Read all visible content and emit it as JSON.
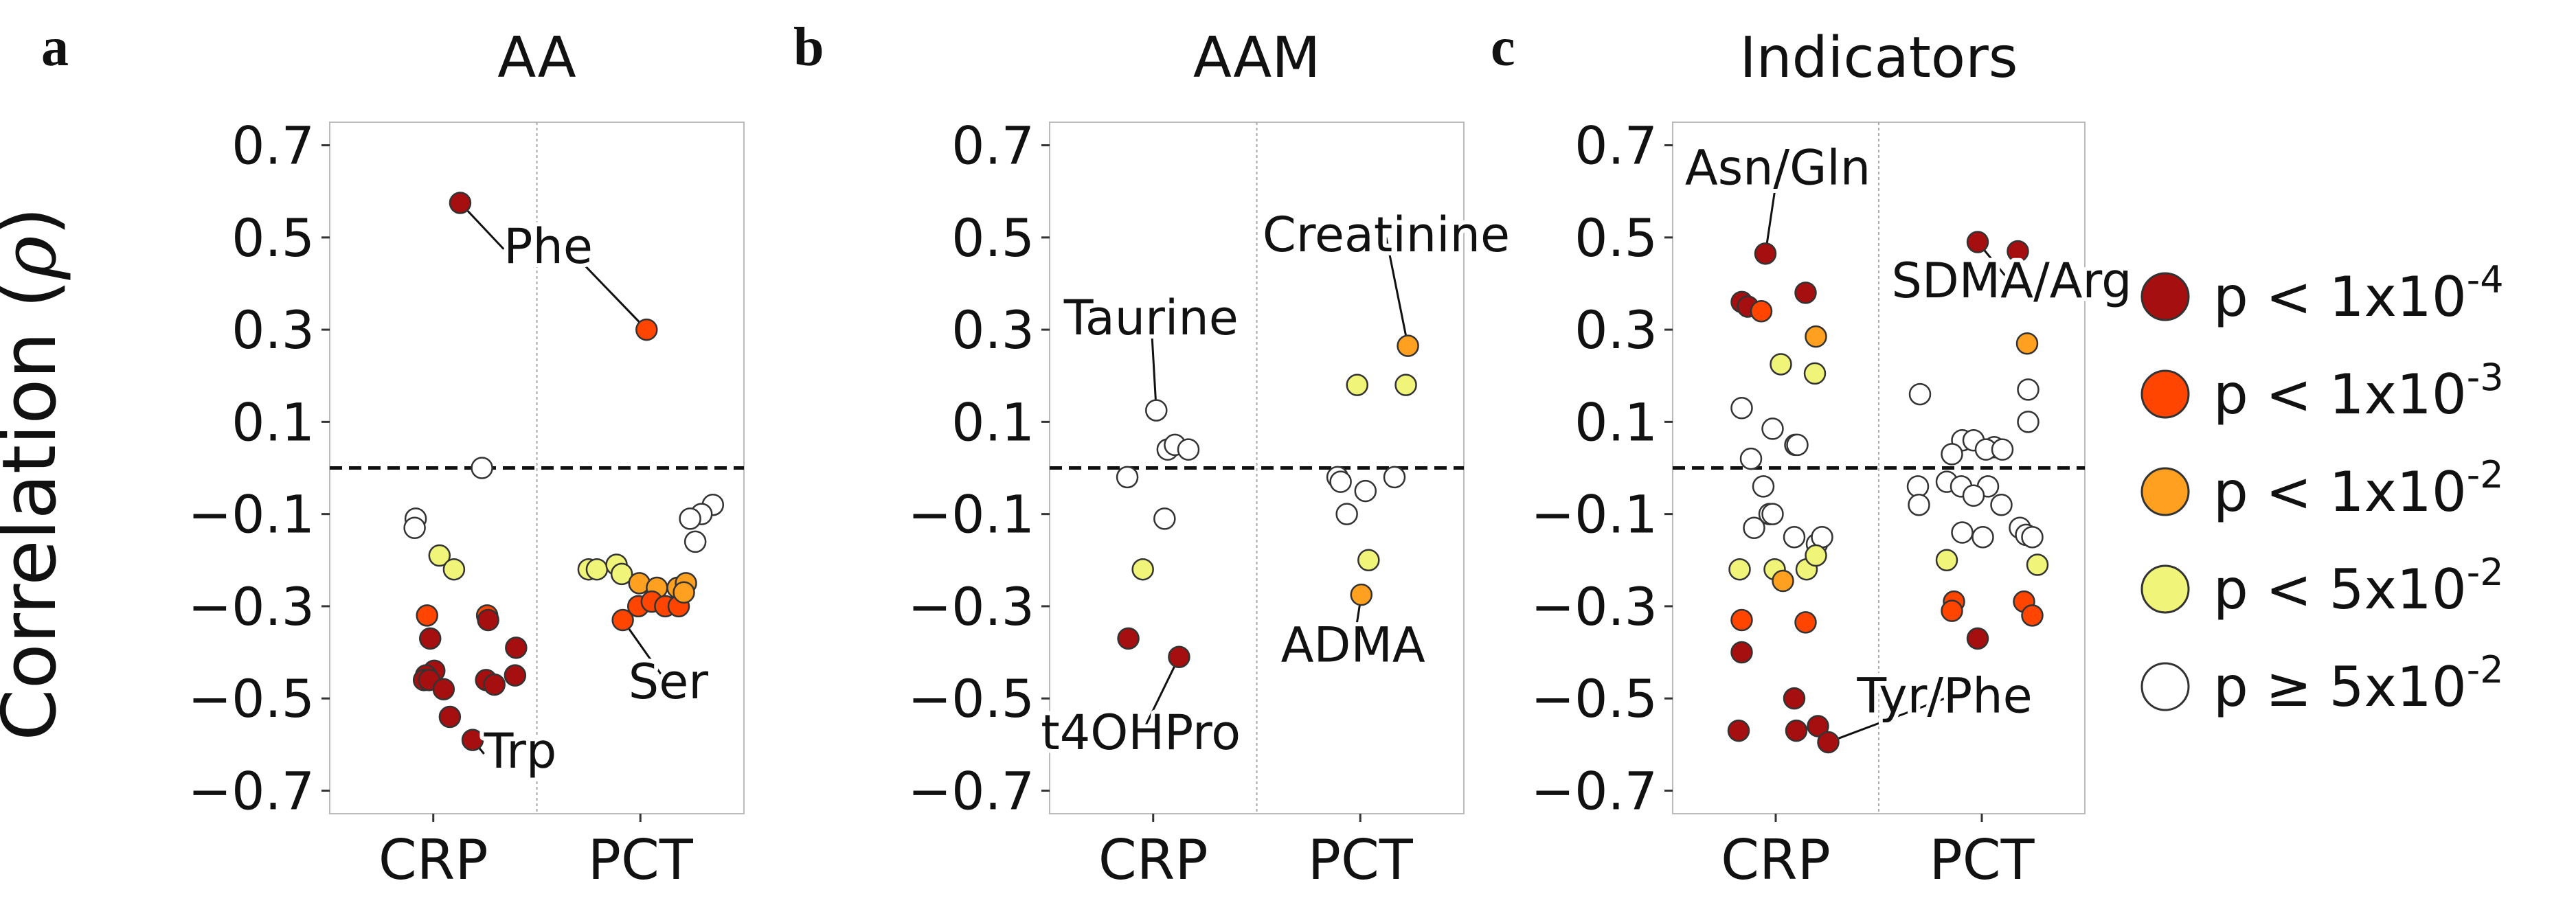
{
  "figure": {
    "ylabel": "Correlation (",
    "ylabel_symbol": "ρ",
    "ylabel_close": ")"
  },
  "legend": {
    "items": [
      {
        "label": "p < 1x10",
        "exp": "-4",
        "color": "#a50f0f"
      },
      {
        "label": "p < 1x10",
        "exp": "-3",
        "color": "#ff4500"
      },
      {
        "label": "p < 1x10",
        "exp": "-2",
        "color": "#ffa020"
      },
      {
        "label": "p < 5x10",
        "exp": "-2",
        "color": "#f0f57a"
      },
      {
        "label": "p ≥ 5x10",
        "exp": "-2",
        "color": "#ffffff"
      }
    ]
  },
  "chart_data": [
    {
      "type": "scatter",
      "panel": "a",
      "title": "AA",
      "categories": [
        "CRP",
        "PCT"
      ],
      "ylim": [
        -0.75,
        0.75
      ],
      "yticks": [
        0.7,
        0.5,
        0.3,
        0.1,
        -0.1,
        -0.3,
        -0.5,
        -0.7
      ],
      "ytick_labels": [
        "0.7",
        "0.5",
        "0.3",
        "0.1",
        "−0.1",
        "−0.3",
        "−0.5",
        "−0.7"
      ],
      "reference_line_y": 0,
      "points": [
        {
          "cat": 0,
          "j": 0.26,
          "y": 0.575,
          "p": 0
        },
        {
          "cat": 1,
          "j": 0.06,
          "y": 0.3,
          "p": 1
        },
        {
          "cat": 0,
          "j": 0.47,
          "y": 0.0,
          "p": 4
        },
        {
          "cat": 0,
          "j": -0.17,
          "y": -0.11,
          "p": 4
        },
        {
          "cat": 0,
          "j": -0.18,
          "y": -0.13,
          "p": 4
        },
        {
          "cat": 0,
          "j": 0.06,
          "y": -0.19,
          "p": 3
        },
        {
          "cat": 0,
          "j": 0.2,
          "y": -0.22,
          "p": 3
        },
        {
          "cat": 0,
          "j": -0.06,
          "y": -0.32,
          "p": 1
        },
        {
          "cat": 0,
          "j": 0.52,
          "y": -0.32,
          "p": 1
        },
        {
          "cat": 0,
          "j": 0.53,
          "y": -0.33,
          "p": 0
        },
        {
          "cat": 0,
          "j": -0.03,
          "y": -0.37,
          "p": 0
        },
        {
          "cat": 0,
          "j": 0.8,
          "y": -0.39,
          "p": 0
        },
        {
          "cat": 0,
          "j": 0.01,
          "y": -0.44,
          "p": 0
        },
        {
          "cat": 0,
          "j": -0.07,
          "y": -0.45,
          "p": 0
        },
        {
          "cat": 0,
          "j": -0.09,
          "y": -0.46,
          "p": 0
        },
        {
          "cat": 0,
          "j": -0.04,
          "y": -0.46,
          "p": 0
        },
        {
          "cat": 0,
          "j": 0.79,
          "y": -0.45,
          "p": 0
        },
        {
          "cat": 0,
          "j": 0.51,
          "y": -0.46,
          "p": 0
        },
        {
          "cat": 0,
          "j": 0.59,
          "y": -0.47,
          "p": 0
        },
        {
          "cat": 0,
          "j": 0.1,
          "y": -0.48,
          "p": 0
        },
        {
          "cat": 0,
          "j": 0.16,
          "y": -0.54,
          "p": 0
        },
        {
          "cat": 0,
          "j": 0.38,
          "y": -0.59,
          "p": 0
        },
        {
          "cat": 1,
          "j": 0.7,
          "y": -0.08,
          "p": 4
        },
        {
          "cat": 1,
          "j": 0.59,
          "y": -0.1,
          "p": 4
        },
        {
          "cat": 1,
          "j": 0.48,
          "y": -0.11,
          "p": 4
        },
        {
          "cat": 1,
          "j": 0.53,
          "y": -0.16,
          "p": 4
        },
        {
          "cat": 1,
          "j": -0.5,
          "y": -0.22,
          "p": 3
        },
        {
          "cat": 1,
          "j": -0.42,
          "y": -0.22,
          "p": 3
        },
        {
          "cat": 1,
          "j": -0.23,
          "y": -0.21,
          "p": 3
        },
        {
          "cat": 1,
          "j": -0.18,
          "y": -0.23,
          "p": 3
        },
        {
          "cat": 1,
          "j": -0.01,
          "y": -0.25,
          "p": 2
        },
        {
          "cat": 1,
          "j": 0.16,
          "y": -0.26,
          "p": 2
        },
        {
          "cat": 1,
          "j": 0.36,
          "y": -0.26,
          "p": 2
        },
        {
          "cat": 1,
          "j": 0.44,
          "y": -0.25,
          "p": 2
        },
        {
          "cat": 1,
          "j": -0.17,
          "y": -0.33,
          "p": 1
        },
        {
          "cat": 1,
          "j": -0.02,
          "y": -0.3,
          "p": 1
        },
        {
          "cat": 1,
          "j": 0.11,
          "y": -0.29,
          "p": 1
        },
        {
          "cat": 1,
          "j": 0.24,
          "y": -0.3,
          "p": 1
        },
        {
          "cat": 1,
          "j": 0.37,
          "y": -0.3,
          "p": 1
        },
        {
          "cat": 1,
          "j": 0.42,
          "y": -0.27,
          "p": 2
        }
      ],
      "annotations": [
        {
          "text": "Phe",
          "from": [
            0,
            0.26,
            0.575
          ],
          "to": [
            1,
            0.06,
            0.3
          ],
          "label_at": [
            0,
            0.68,
            0.445
          ],
          "anchor": "start"
        },
        {
          "text": "Trp",
          "from": [
            0,
            0.38,
            -0.59
          ],
          "to": null,
          "label_at": [
            0,
            0.49,
            -0.65
          ],
          "anchor": "start"
        },
        {
          "text": "Ser",
          "from": [
            1,
            -0.17,
            -0.33
          ],
          "to": null,
          "label_at": [
            1,
            0.27,
            -0.5
          ],
          "anchor": "middle"
        }
      ]
    },
    {
      "type": "scatter",
      "panel": "b",
      "title": "AAM",
      "categories": [
        "CRP",
        "PCT"
      ],
      "ylim": [
        -0.75,
        0.75
      ],
      "yticks": [
        0.7,
        0.5,
        0.3,
        0.1,
        -0.1,
        -0.3,
        -0.5,
        -0.7
      ],
      "ytick_labels": [
        "0.7",
        "0.5",
        "0.3",
        "0.1",
        "−0.1",
        "−0.3",
        "−0.5",
        "−0.7"
      ],
      "reference_line_y": 0,
      "points": [
        {
          "cat": 0,
          "j": 0.03,
          "y": 0.125,
          "p": 4
        },
        {
          "cat": 0,
          "j": 0.14,
          "y": 0.04,
          "p": 4
        },
        {
          "cat": 0,
          "j": 0.21,
          "y": 0.05,
          "p": 4
        },
        {
          "cat": 0,
          "j": 0.34,
          "y": 0.04,
          "p": 4
        },
        {
          "cat": 0,
          "j": -0.25,
          "y": -0.02,
          "p": 4
        },
        {
          "cat": 0,
          "j": 0.11,
          "y": -0.11,
          "p": 4
        },
        {
          "cat": 0,
          "j": -0.1,
          "y": -0.22,
          "p": 3
        },
        {
          "cat": 0,
          "j": -0.24,
          "y": -0.37,
          "p": 0
        },
        {
          "cat": 0,
          "j": 0.25,
          "y": -0.41,
          "p": 0
        },
        {
          "cat": 1,
          "j": -0.03,
          "y": 0.18,
          "p": 3
        },
        {
          "cat": 1,
          "j": 0.44,
          "y": 0.18,
          "p": 3
        },
        {
          "cat": 1,
          "j": 0.46,
          "y": 0.265,
          "p": 2
        },
        {
          "cat": 1,
          "j": -0.22,
          "y": -0.02,
          "p": 4
        },
        {
          "cat": 1,
          "j": -0.19,
          "y": -0.03,
          "p": 4
        },
        {
          "cat": 1,
          "j": 0.05,
          "y": -0.05,
          "p": 4
        },
        {
          "cat": 1,
          "j": -0.13,
          "y": -0.1,
          "p": 4
        },
        {
          "cat": 1,
          "j": 0.33,
          "y": -0.02,
          "p": 4
        },
        {
          "cat": 1,
          "j": 0.08,
          "y": -0.2,
          "p": 3
        },
        {
          "cat": 1,
          "j": 0.01,
          "y": -0.275,
          "p": 2
        }
      ],
      "annotations": [
        {
          "text": "Creatinine",
          "from": [
            1,
            0.46,
            0.265
          ],
          "to": null,
          "label_at": [
            1,
            0.25,
            0.47
          ],
          "anchor": "middle"
        },
        {
          "text": "Taurine",
          "from": [
            0,
            0.03,
            0.125
          ],
          "to": null,
          "label_at": [
            0,
            -0.02,
            0.29
          ],
          "anchor": "middle"
        },
        {
          "text": "ADMA",
          "from": [
            1,
            0.01,
            -0.275
          ],
          "to": null,
          "label_at": [
            1,
            -0.07,
            -0.42
          ],
          "anchor": "middle"
        },
        {
          "text": "t4OHPro",
          "from": [
            0,
            0.25,
            -0.41
          ],
          "to": null,
          "label_at": [
            0,
            -0.12,
            -0.61
          ],
          "anchor": "middle"
        }
      ]
    },
    {
      "type": "scatter",
      "panel": "c",
      "title": "Indicators",
      "categories": [
        "CRP",
        "PCT"
      ],
      "ylim": [
        -0.75,
        0.75
      ],
      "yticks": [
        0.7,
        0.5,
        0.3,
        0.1,
        -0.1,
        -0.3,
        -0.5,
        -0.7
      ],
      "ytick_labels": [
        "0.7",
        "0.5",
        "0.3",
        "0.1",
        "−0.1",
        "−0.3",
        "−0.5",
        "−0.7"
      ],
      "reference_line_y": 0,
      "points": [
        {
          "cat": 0,
          "j": -0.1,
          "y": 0.465,
          "p": 0
        },
        {
          "cat": 0,
          "j": 0.29,
          "y": 0.38,
          "p": 0
        },
        {
          "cat": 0,
          "j": -0.33,
          "y": 0.36,
          "p": 0
        },
        {
          "cat": 0,
          "j": -0.27,
          "y": 0.35,
          "p": 0
        },
        {
          "cat": 0,
          "j": -0.14,
          "y": 0.34,
          "p": 1
        },
        {
          "cat": 0,
          "j": 0.39,
          "y": 0.285,
          "p": 2
        },
        {
          "cat": 0,
          "j": 0.05,
          "y": 0.225,
          "p": 3
        },
        {
          "cat": 0,
          "j": 0.38,
          "y": 0.205,
          "p": 3
        },
        {
          "cat": 0,
          "j": -0.33,
          "y": 0.13,
          "p": 4
        },
        {
          "cat": 0,
          "j": -0.03,
          "y": 0.085,
          "p": 4
        },
        {
          "cat": 0,
          "j": 0.19,
          "y": 0.05,
          "p": 4
        },
        {
          "cat": 0,
          "j": 0.21,
          "y": 0.05,
          "p": 4
        },
        {
          "cat": 0,
          "j": -0.24,
          "y": 0.02,
          "p": 4
        },
        {
          "cat": 0,
          "j": -0.12,
          "y": -0.04,
          "p": 4
        },
        {
          "cat": 0,
          "j": -0.06,
          "y": -0.1,
          "p": 4
        },
        {
          "cat": 0,
          "j": -0.21,
          "y": -0.13,
          "p": 4
        },
        {
          "cat": 0,
          "j": -0.03,
          "y": -0.1,
          "p": 4
        },
        {
          "cat": 0,
          "j": 0.18,
          "y": -0.15,
          "p": 4
        },
        {
          "cat": 0,
          "j": 0.4,
          "y": -0.165,
          "p": 4
        },
        {
          "cat": 0,
          "j": 0.45,
          "y": -0.15,
          "p": 4
        },
        {
          "cat": 0,
          "j": -0.35,
          "y": -0.22,
          "p": 3
        },
        {
          "cat": 0,
          "j": -0.01,
          "y": -0.22,
          "p": 3
        },
        {
          "cat": 0,
          "j": 0.3,
          "y": -0.22,
          "p": 3
        },
        {
          "cat": 0,
          "j": 0.39,
          "y": -0.19,
          "p": 3
        },
        {
          "cat": 0,
          "j": 0.07,
          "y": -0.245,
          "p": 2
        },
        {
          "cat": 0,
          "j": -0.33,
          "y": -0.33,
          "p": 1
        },
        {
          "cat": 0,
          "j": 0.29,
          "y": -0.335,
          "p": 1
        },
        {
          "cat": 0,
          "j": -0.33,
          "y": -0.4,
          "p": 0
        },
        {
          "cat": 0,
          "j": 0.18,
          "y": -0.5,
          "p": 0
        },
        {
          "cat": 0,
          "j": 0.2,
          "y": -0.57,
          "p": 0
        },
        {
          "cat": 0,
          "j": 0.41,
          "y": -0.56,
          "p": 0
        },
        {
          "cat": 0,
          "j": 0.51,
          "y": -0.595,
          "p": 0
        },
        {
          "cat": 0,
          "j": -0.36,
          "y": -0.57,
          "p": 0
        },
        {
          "cat": 1,
          "j": -0.04,
          "y": 0.49,
          "p": 0
        },
        {
          "cat": 1,
          "j": 0.35,
          "y": 0.47,
          "p": 0
        },
        {
          "cat": 1,
          "j": 0.44,
          "y": 0.27,
          "p": 2
        },
        {
          "cat": 1,
          "j": -0.6,
          "y": 0.16,
          "p": 4
        },
        {
          "cat": 1,
          "j": 0.45,
          "y": 0.17,
          "p": 4
        },
        {
          "cat": 1,
          "j": 0.45,
          "y": 0.1,
          "p": 4
        },
        {
          "cat": 1,
          "j": -0.19,
          "y": 0.06,
          "p": 4
        },
        {
          "cat": 1,
          "j": -0.08,
          "y": 0.06,
          "p": 4
        },
        {
          "cat": 1,
          "j": 0.12,
          "y": 0.045,
          "p": 4
        },
        {
          "cat": 1,
          "j": -0.29,
          "y": 0.03,
          "p": 4
        },
        {
          "cat": 1,
          "j": 0.04,
          "y": 0.04,
          "p": 4
        },
        {
          "cat": 1,
          "j": 0.2,
          "y": 0.04,
          "p": 4
        },
        {
          "cat": 1,
          "j": -0.62,
          "y": -0.04,
          "p": 4
        },
        {
          "cat": 1,
          "j": -0.34,
          "y": -0.03,
          "p": 4
        },
        {
          "cat": 1,
          "j": -0.2,
          "y": -0.04,
          "p": 4
        },
        {
          "cat": 1,
          "j": 0.06,
          "y": -0.04,
          "p": 4
        },
        {
          "cat": 1,
          "j": -0.61,
          "y": -0.08,
          "p": 4
        },
        {
          "cat": 1,
          "j": -0.08,
          "y": -0.06,
          "p": 4
        },
        {
          "cat": 1,
          "j": 0.19,
          "y": -0.08,
          "p": 4
        },
        {
          "cat": 1,
          "j": 0.37,
          "y": -0.13,
          "p": 4
        },
        {
          "cat": 1,
          "j": -0.19,
          "y": -0.14,
          "p": 4
        },
        {
          "cat": 1,
          "j": 0.01,
          "y": -0.15,
          "p": 4
        },
        {
          "cat": 1,
          "j": 0.43,
          "y": -0.145,
          "p": 4
        },
        {
          "cat": 1,
          "j": 0.49,
          "y": -0.15,
          "p": 4
        },
        {
          "cat": 1,
          "j": -0.34,
          "y": -0.2,
          "p": 3
        },
        {
          "cat": 1,
          "j": 0.54,
          "y": -0.21,
          "p": 3
        },
        {
          "cat": 1,
          "j": -0.27,
          "y": -0.29,
          "p": 1
        },
        {
          "cat": 1,
          "j": -0.29,
          "y": -0.31,
          "p": 1
        },
        {
          "cat": 1,
          "j": 0.41,
          "y": -0.29,
          "p": 1
        },
        {
          "cat": 1,
          "j": 0.49,
          "y": -0.32,
          "p": 1
        },
        {
          "cat": 1,
          "j": -0.04,
          "y": -0.37,
          "p": 0
        }
      ],
      "annotations": [
        {
          "text": "Asn/Gln",
          "from": [
            0,
            -0.1,
            0.465
          ],
          "to": null,
          "label_at": [
            0,
            0.02,
            0.615
          ],
          "anchor": "middle"
        },
        {
          "text": "SDMA/Arg",
          "from": [
            1,
            -0.04,
            0.49
          ],
          "to": null,
          "label_at": [
            1,
            0.29,
            0.37
          ],
          "anchor": "middle"
        },
        {
          "text": "Tyr/Phe",
          "from": [
            0,
            0.51,
            -0.595
          ],
          "to": null,
          "label_at": [
            1,
            -0.36,
            -0.53
          ],
          "anchor": "middle"
        }
      ]
    }
  ]
}
